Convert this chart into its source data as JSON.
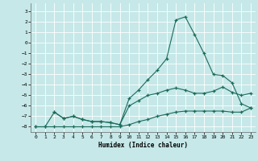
{
  "xlabel": "Humidex (Indice chaleur)",
  "xlim": [
    -0.5,
    23.5
  ],
  "ylim": [
    -8.5,
    3.8
  ],
  "xticks": [
    0,
    1,
    2,
    3,
    4,
    5,
    6,
    7,
    8,
    9,
    10,
    11,
    12,
    13,
    14,
    15,
    16,
    17,
    18,
    19,
    20,
    21,
    22,
    23
  ],
  "yticks": [
    3,
    2,
    1,
    0,
    -1,
    -2,
    -3,
    -4,
    -5,
    -6,
    -7,
    -8
  ],
  "bg_color": "#c6e8e8",
  "line_color": "#1a6b5a",
  "grid_color": "#b0d8d8",
  "line1_x": [
    0,
    1,
    2,
    3,
    4,
    5,
    6,
    7,
    8,
    9,
    10,
    11,
    12,
    13,
    14,
    15,
    16,
    17,
    18,
    19,
    20,
    21,
    22,
    23
  ],
  "line1_y": [
    -8.0,
    -8.0,
    -8.0,
    -8.0,
    -8.0,
    -8.0,
    -8.0,
    -8.0,
    -8.0,
    -8.0,
    -7.8,
    -7.5,
    -7.3,
    -7.0,
    -6.8,
    -6.6,
    -6.5,
    -6.5,
    -6.5,
    -6.5,
    -6.5,
    -6.6,
    -6.6,
    -6.2
  ],
  "line2_x": [
    2,
    3,
    4,
    5,
    6,
    7,
    8,
    9,
    10,
    11,
    12,
    13,
    14,
    15,
    16,
    17,
    18,
    19,
    20,
    21,
    22,
    23
  ],
  "line2_y": [
    -6.6,
    -7.2,
    -7.0,
    -7.3,
    -7.5,
    -7.5,
    -7.6,
    -7.8,
    -6.0,
    -5.5,
    -5.0,
    -4.8,
    -4.5,
    -4.3,
    -4.5,
    -4.8,
    -4.8,
    -4.6,
    -4.2,
    -4.7,
    -5.0,
    -4.8
  ],
  "line3_x": [
    0,
    1,
    2,
    3,
    4,
    5,
    6,
    7,
    8,
    9,
    10,
    11,
    12,
    13,
    14,
    15,
    16,
    17,
    18,
    19,
    20,
    21,
    22,
    23
  ],
  "line3_y": [
    -8.0,
    -8.0,
    -6.6,
    -7.2,
    -7.0,
    -7.3,
    -7.5,
    -7.5,
    -7.6,
    -7.8,
    -5.3,
    -4.5,
    -3.5,
    -2.6,
    -1.5,
    2.2,
    2.5,
    0.8,
    -1.0,
    -3.0,
    -3.1,
    -3.8,
    -5.8,
    -6.2
  ]
}
